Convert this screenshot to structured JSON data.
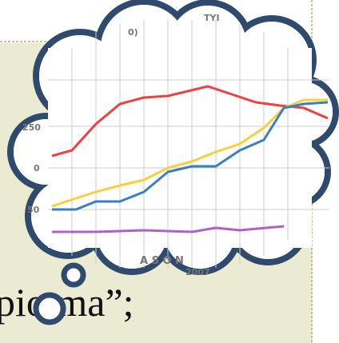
{
  "slide": {
    "text": "pio ma”;"
  },
  "thought_image": {
    "title_fragments": [
      "0)",
      "TYI"
    ],
    "y_labels": [
      "250",
      "0",
      "50"
    ],
    "x_labels": [
      "A S O N",
      "2007"
    ]
  }
}
